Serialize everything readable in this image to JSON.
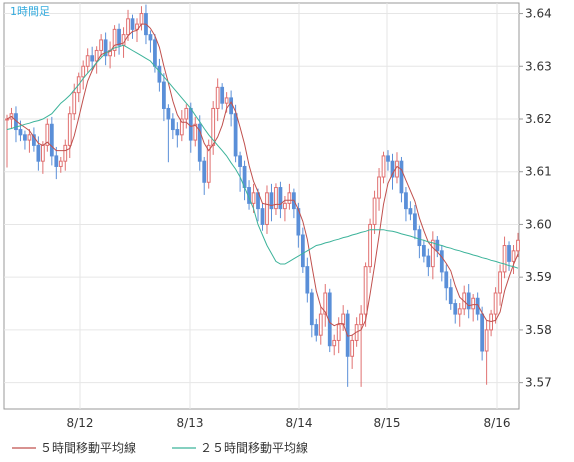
{
  "chart_data": {
    "type": "candlestick",
    "period_label": "1時間足",
    "y_axis": {
      "min": 3.565,
      "max": 3.642,
      "ticks": [
        "3.64",
        "3.63",
        "3.62",
        "3.61",
        "3.60",
        "3.59",
        "3.58",
        "3.57"
      ]
    },
    "x_axis": {
      "ticks": [
        "8/12",
        "8/13",
        "8/14",
        "8/15",
        "8/16"
      ]
    },
    "grid": true,
    "legend_position": "bottom-left",
    "series": [
      {
        "name": "５時間移動平均線",
        "color": "#c0504d"
      },
      {
        "name": "２５時間移動平均線",
        "color": "#3cb39a"
      }
    ],
    "candle_colors": {
      "up": "#e07070",
      "down": "#5a8fd8"
    },
    "close": [
      3.62,
      3.621,
      3.618,
      3.617,
      3.616,
      3.617,
      3.615,
      3.612,
      3.615,
      3.619,
      3.613,
      3.611,
      3.612,
      3.615,
      3.621,
      3.625,
      3.628,
      3.63,
      3.632,
      3.631,
      3.633,
      3.635,
      3.632,
      3.633,
      3.637,
      3.634,
      3.636,
      3.639,
      3.637,
      3.638,
      3.64,
      3.636,
      3.635,
      3.63,
      3.627,
      3.622,
      3.62,
      3.618,
      3.617,
      3.62,
      3.622,
      3.616,
      3.619,
      3.612,
      3.608,
      3.615,
      3.622,
      3.626,
      3.623,
      3.624,
      3.621,
      3.613,
      3.611,
      3.607,
      3.604,
      3.606,
      3.603,
      3.6,
      3.606,
      3.603,
      3.607,
      3.603,
      3.604,
      3.606,
      3.603,
      3.598,
      3.592,
      3.587,
      3.581,
      3.579,
      3.583,
      3.587,
      3.577,
      3.578,
      3.581,
      3.583,
      3.575,
      3.578,
      3.581,
      3.583,
      3.592,
      3.6,
      3.605,
      3.609,
      3.613,
      3.612,
      3.609,
      3.612,
      3.606,
      3.603,
      3.602,
      3.599,
      3.596,
      3.594,
      3.592,
      3.597,
      3.595,
      3.591,
      3.588,
      3.585,
      3.583,
      3.584,
      3.587,
      3.584,
      3.586,
      3.583,
      3.576,
      3.58,
      3.583,
      3.587,
      3.591,
      3.596,
      3.593,
      3.595,
      3.597
    ],
    "ma25": [
      3.618,
      3.6182,
      3.6185,
      3.6187,
      3.619,
      3.6192,
      3.6195,
      3.6197,
      3.62,
      3.6205,
      3.621,
      3.622,
      3.623,
      3.6237,
      3.6245,
      3.6255,
      3.6265,
      3.6277,
      3.6287,
      3.6297,
      3.6307,
      3.6316,
      3.6325,
      3.633,
      3.6335,
      3.6337,
      3.634,
      3.6335,
      3.633,
      3.6325,
      3.632,
      3.6315,
      3.631,
      3.63,
      3.629,
      3.628,
      3.627,
      3.626,
      3.625,
      3.624,
      3.623,
      3.622,
      3.6207,
      3.6195,
      3.6182,
      3.617,
      3.616,
      3.615,
      3.614,
      3.613,
      3.6117,
      3.6105,
      3.609,
      3.607,
      3.605,
      3.603,
      3.6,
      3.598,
      3.596,
      3.5945,
      3.593,
      3.5925,
      3.5925,
      3.593,
      3.5935,
      3.594,
      3.5945,
      3.595,
      3.5955,
      3.596,
      3.5962,
      3.5965,
      3.5967,
      3.597,
      3.5972,
      3.5975,
      3.5977,
      3.598,
      3.5982,
      3.5985,
      3.5987,
      3.599,
      3.599,
      3.599,
      3.599,
      3.5988,
      3.5987,
      3.5985,
      3.5982,
      3.598,
      3.5978,
      3.5975,
      3.5972,
      3.597,
      3.5967,
      3.5965,
      3.5962,
      3.596,
      3.5957,
      3.5955,
      3.5952,
      3.595,
      3.5947,
      3.5945,
      3.5942,
      3.594,
      3.5937,
      3.5935,
      3.5932,
      3.593,
      3.5927,
      3.5925,
      3.5922,
      3.592,
      3.5917
    ]
  }
}
